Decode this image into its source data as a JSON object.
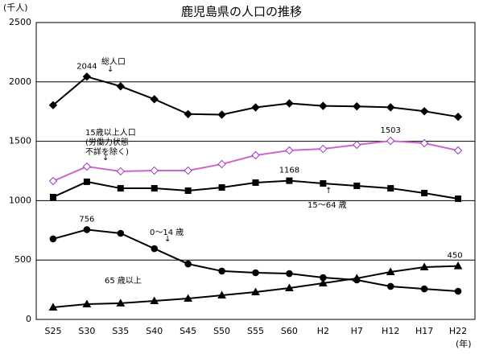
{
  "chart_data": {
    "type": "line",
    "title": "鹿児島県の人口の推移",
    "y_label": "(千人)",
    "x_label": "(年)",
    "categories": [
      "S25",
      "S30",
      "S35",
      "S40",
      "S45",
      "S50",
      "S55",
      "S60",
      "H2",
      "H7",
      "H12",
      "H17",
      "H22"
    ],
    "ylim": [
      0,
      2500
    ],
    "yticks": [
      0,
      500,
      1000,
      1500,
      2000,
      2500
    ],
    "grid": true,
    "series": [
      {
        "name": "総人口",
        "color": "#000000",
        "marker": "diamond",
        "values": [
          1804,
          2044,
          1963,
          1854,
          1729,
          1724,
          1785,
          1819,
          1798,
          1794,
          1786,
          1753,
          1706
        ]
      },
      {
        "name": "15歳以上人口\n(労働力状態\n不詳を除く)",
        "color": "#cc66cc",
        "marker": "diamond-open",
        "values": [
          1165,
          1287,
          1247,
          1253,
          1253,
          1308,
          1382,
          1423,
          1436,
          1470,
          1503,
          1484,
          1423
        ]
      },
      {
        "name": "15～64 歳",
        "color": "#000000",
        "marker": "square",
        "values": [
          1030,
          1159,
          1104,
          1104,
          1084,
          1111,
          1152,
          1168,
          1145,
          1125,
          1104,
          1064,
          1016
        ]
      },
      {
        "name": "0～14 歳",
        "color": "#000000",
        "marker": "circle",
        "values": [
          678,
          756,
          725,
          596,
          467,
          407,
          393,
          386,
          352,
          332,
          278,
          257,
          237
        ]
      },
      {
        "name": "65 歳以上",
        "color": "#000000",
        "marker": "triangle",
        "values": [
          102,
          129,
          136,
          156,
          176,
          203,
          230,
          264,
          305,
          346,
          400,
          440,
          450
        ]
      }
    ]
  }
}
